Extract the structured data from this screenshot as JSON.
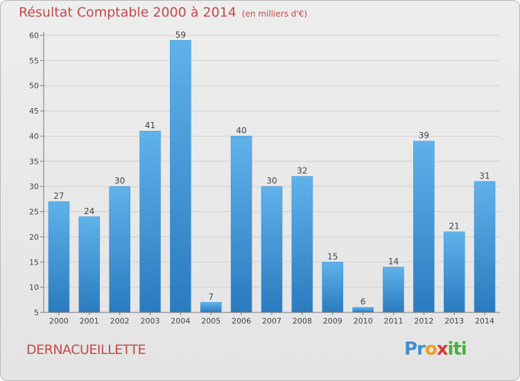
{
  "title": "Résultat Comptable 2000 à 2014",
  "unit_note": "(en milliers d'€)",
  "commune": "DERNACUEILLETTE",
  "logo_text": "Proxiti",
  "colors": {
    "bar": "#5aaee8",
    "bar_dark": "#2e7fc4",
    "title": "#c04a4a"
  },
  "chart_data": {
    "type": "bar",
    "title": "Résultat Comptable 2000 à 2014",
    "xlabel": "",
    "ylabel": "",
    "categories": [
      "2000",
      "2001",
      "2002",
      "2003",
      "2004",
      "2005",
      "2006",
      "2007",
      "2008",
      "2009",
      "2010",
      "2011",
      "2012",
      "2013",
      "2014"
    ],
    "values": [
      27,
      24,
      30,
      41,
      59,
      7,
      40,
      30,
      32,
      15,
      6,
      14,
      39,
      21,
      31
    ],
    "ylim": [
      5,
      60
    ],
    "yticks": [
      5,
      10,
      15,
      20,
      25,
      30,
      35,
      40,
      45,
      50,
      55,
      60
    ],
    "grid": true
  }
}
